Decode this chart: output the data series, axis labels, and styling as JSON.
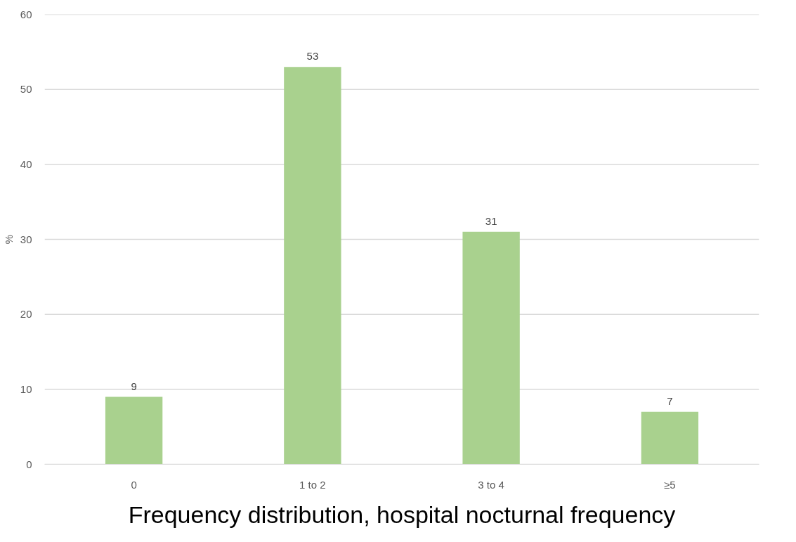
{
  "chart_data": {
    "type": "bar",
    "title": "Frequency distribution, hospital nocturnal frequency",
    "ylabel": "%",
    "categories": [
      "0",
      "1 to 2",
      "3 to 4",
      "≥5"
    ],
    "values": [
      9,
      53,
      31,
      7
    ],
    "color": "#a9d18e",
    "ylim": [
      0,
      60
    ],
    "yticks": [
      0,
      10,
      20,
      30,
      40,
      50,
      60
    ],
    "grid": "y",
    "data_labels": true
  }
}
